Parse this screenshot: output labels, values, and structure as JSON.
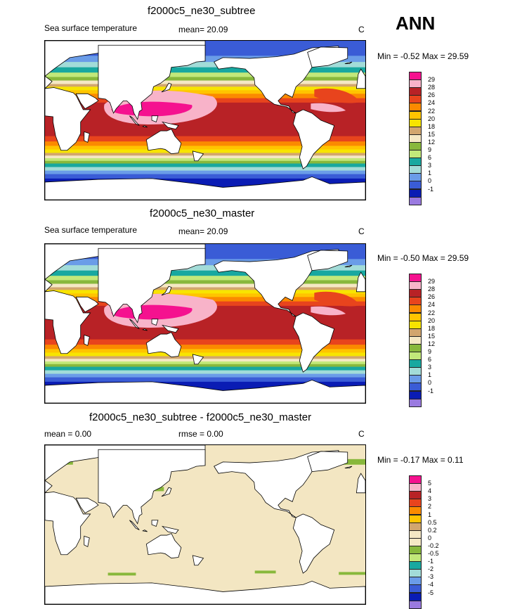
{
  "season": "ANN",
  "panels": [
    {
      "title": "f2000c5_ne30_subtree",
      "left_label": "Sea surface temperature",
      "mid_label": "mean=  20.09",
      "units": "C",
      "minmax": "Min =  -0.52 Max =  29.59",
      "scale": "abs",
      "legend_labels": [
        "29",
        "28",
        "26",
        "24",
        "22",
        "20",
        "18",
        "15",
        "12",
        "9",
        "6",
        "3",
        "1",
        "0",
        "-1"
      ]
    },
    {
      "title": "f2000c5_ne30_master",
      "left_label": "Sea surface temperature",
      "mid_label": "mean=  20.09",
      "units": "C",
      "minmax": "Min =  -0.50 Max =  29.59",
      "scale": "abs",
      "legend_labels": [
        "29",
        "28",
        "26",
        "24",
        "22",
        "20",
        "18",
        "15",
        "12",
        "9",
        "6",
        "3",
        "1",
        "0",
        "-1"
      ]
    },
    {
      "title": "f2000c5_ne30_subtree - f2000c5_ne30_master",
      "left_label": "mean =   0.00",
      "mid_label": "rmse =   0.00",
      "units": "C",
      "minmax": "Min =  -0.17 Max =   0.11",
      "scale": "diff",
      "legend_labels": [
        "5",
        "4",
        "3",
        "2",
        "1",
        "0.5",
        "0.2",
        "0",
        "-0.2",
        "-0.5",
        "-1",
        "-2",
        "-3",
        "-4",
        "-5"
      ]
    }
  ],
  "colors": {
    "abs_scale": [
      "#f5128f",
      "#f8b3c9",
      "#b82226",
      "#e8441d",
      "#fb8a00",
      "#ffc400",
      "#f8e400",
      "#d2a66e",
      "#f5e8c4",
      "#88b83c",
      "#c2e87a",
      "#18a8a0",
      "#a2dcd8",
      "#6a9ce8",
      "#3a5cd6",
      "#0a1cb4",
      "#9a7ae0"
    ],
    "diff_scale": [
      "#f5128f",
      "#f8b3c9",
      "#b82226",
      "#e8441d",
      "#fb8a00",
      "#ffc400",
      "#d2a66e",
      "#f5e8c4",
      "#f5e8c4",
      "#88b83c",
      "#c2e87a",
      "#18a8a0",
      "#a2dcd8",
      "#6a9ce8",
      "#3a5cd6",
      "#0a1cb4",
      "#9a7ae0"
    ],
    "land": "#ffffff",
    "diff_ocean": "#f3e6c2",
    "diff_polar": "#88b83c"
  }
}
